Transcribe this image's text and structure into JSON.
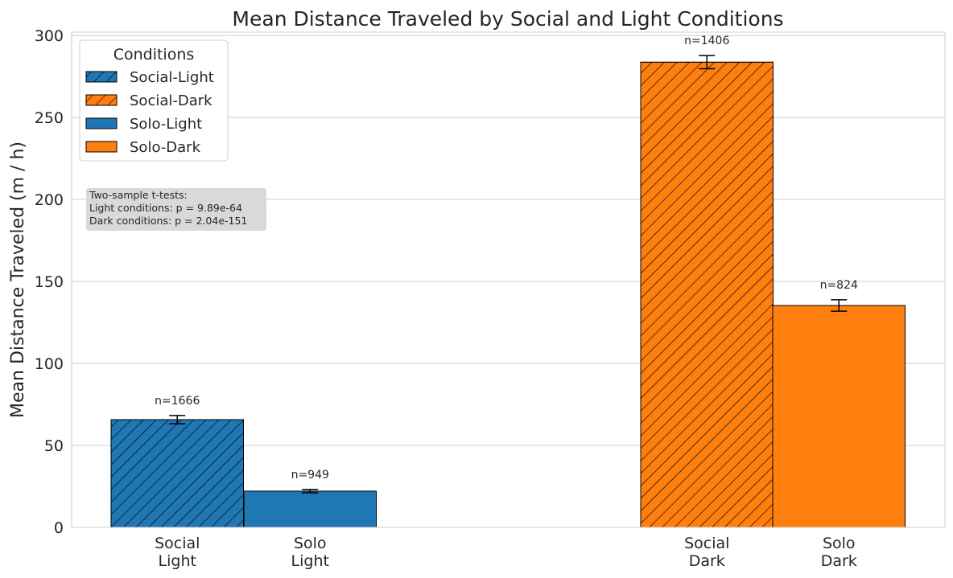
{
  "chart_data": {
    "type": "bar",
    "title": "Mean Distance Traveled by Social and Light Conditions",
    "xlabel": "",
    "ylabel": "Mean Distance Traveled (m / h)",
    "ylim": [
      0,
      302
    ],
    "yticks": [
      0,
      50,
      100,
      150,
      200,
      250,
      300
    ],
    "grid": true,
    "categories": [
      "Social\nLight",
      "Solo\nLight",
      "Social\nDark",
      "Solo\nDark"
    ],
    "bars": [
      {
        "name": "Social-Light",
        "value": 65.7,
        "error": 2.5,
        "n_label": "n=1666",
        "color": "#1f77b4",
        "hatch": true
      },
      {
        "name": "Solo-Light",
        "value": 22.1,
        "error": 1.0,
        "n_label": "n=949",
        "color": "#1f77b4",
        "hatch": false
      },
      {
        "name": "Social-Dark",
        "value": 283.7,
        "error": 4.0,
        "n_label": "n=1406",
        "color": "#ff7f0e",
        "hatch": true
      },
      {
        "name": "Solo-Dark",
        "value": 135.3,
        "error": 3.5,
        "n_label": "n=824",
        "color": "#ff7f0e",
        "hatch": false
      }
    ],
    "legend": {
      "title": "Conditions",
      "placement": "upper-left",
      "entries": [
        {
          "label": "Social-Light",
          "color": "#1f77b4",
          "hatch": true
        },
        {
          "label": "Social-Dark",
          "color": "#ff7f0e",
          "hatch": true
        },
        {
          "label": "Solo-Light",
          "color": "#1f77b4",
          "hatch": false
        },
        {
          "label": "Solo-Dark",
          "color": "#ff7f0e",
          "hatch": false
        }
      ]
    },
    "annotation": [
      "Two-sample t-tests:",
      "Light conditions: p = 9.89e-64",
      "Dark conditions: p = 2.04e-151"
    ]
  }
}
